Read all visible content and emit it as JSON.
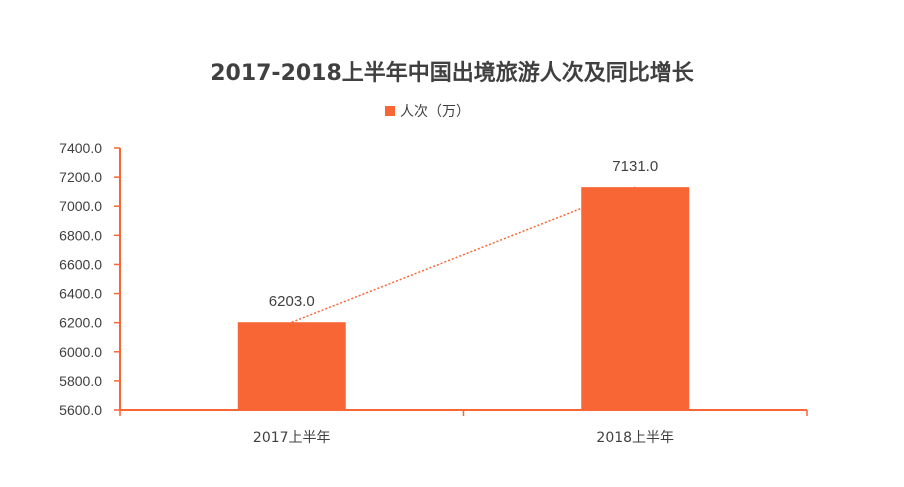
{
  "chart_data": {
    "type": "bar",
    "title": "2017-2018上半年中国出境旅游人次及同比增长",
    "categories": [
      "2017上半年",
      "2018上半年"
    ],
    "series": [
      {
        "name": "人次（万）",
        "values": [
          6203.0,
          7131.0
        ]
      }
    ],
    "value_labels": [
      "6203.0",
      "7131.0"
    ],
    "ylim": [
      5600,
      7400
    ],
    "y_ticks": [
      "5600.0",
      "5800.0",
      "6000.0",
      "6200.0",
      "6400.0",
      "6600.0",
      "6800.0",
      "7000.0",
      "7200.0",
      "7400.0"
    ],
    "trend_line": "dotted",
    "legend_position": "top-center",
    "grid": false,
    "colors": {
      "bar": "#F86635",
      "axis": "#F86635",
      "trend": "#F86635",
      "text": "#404040"
    }
  }
}
